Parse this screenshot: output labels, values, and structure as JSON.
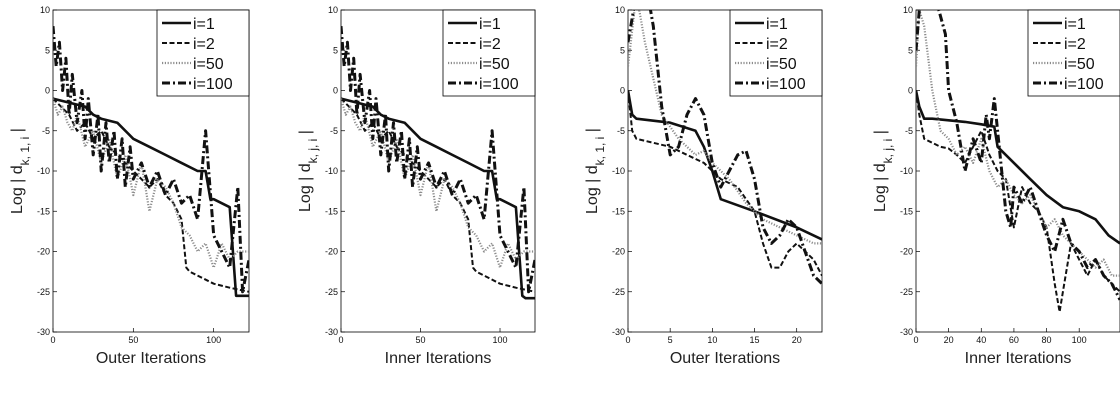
{
  "chart_data": [
    {
      "type": "line",
      "xlabel": "Outer Iterations",
      "ylabel": "Log | d",
      "ylabel_sub": "k, 1, i",
      "ylabel_end": " |",
      "xlim": [
        0,
        122
      ],
      "ylim": [
        -30,
        10
      ],
      "xticks": [
        0,
        50,
        100
      ],
      "yticks": [
        10,
        5,
        0,
        -5,
        -10,
        -15,
        -20,
        -25,
        -30
      ],
      "legend_position": "top-right",
      "series": [
        {
          "name": "i=1",
          "x": [
            0,
            10,
            20,
            25,
            30,
            40,
            50,
            60,
            70,
            80,
            90,
            95,
            98,
            100,
            110,
            114,
            116,
            122
          ],
          "y": [
            -1,
            -1.5,
            -2,
            -3,
            -3.5,
            -4,
            -6,
            -7,
            -8,
            -9,
            -10,
            -10,
            -13.5,
            -13.5,
            -14.5,
            -25.5,
            -25.5,
            -25.5
          ]
        },
        {
          "name": "i=2",
          "x": [
            0,
            5,
            10,
            15,
            20,
            25,
            30,
            35,
            40,
            45,
            50,
            55,
            60,
            65,
            70,
            75,
            80,
            83,
            85,
            90,
            100,
            110,
            122
          ],
          "y": [
            -1,
            -2,
            -3,
            -5,
            -4,
            -6,
            -5,
            -7,
            -8,
            -9,
            -10,
            -11,
            -12,
            -11,
            -13,
            -14,
            -16,
            -22,
            -22.5,
            -23,
            -24,
            -24.5,
            -25
          ]
        },
        {
          "name": "i=50",
          "x": [
            0,
            3,
            6,
            9,
            12,
            15,
            20,
            25,
            30,
            35,
            40,
            45,
            50,
            55,
            60,
            65,
            70,
            75,
            80,
            85,
            90,
            95,
            100,
            105,
            110,
            115,
            122
          ],
          "y": [
            -1,
            -3,
            -2,
            -4,
            -5,
            -3,
            -7,
            -5,
            -9,
            -6,
            -11,
            -8,
            -13,
            -9,
            -15,
            -11,
            -12,
            -14,
            -17,
            -18,
            -20,
            -19,
            -22,
            -19,
            -21,
            -20,
            -20
          ]
        },
        {
          "name": "i=100",
          "x": [
            0,
            2,
            4,
            6,
            8,
            10,
            12,
            15,
            18,
            20,
            22,
            25,
            28,
            30,
            33,
            35,
            38,
            40,
            43,
            45,
            48,
            50,
            55,
            60,
            65,
            70,
            75,
            80,
            85,
            90,
            95,
            100,
            105,
            110,
            115,
            118,
            122
          ],
          "y": [
            8,
            3,
            6,
            0,
            4,
            -3,
            2,
            -4,
            0,
            -6,
            -1,
            -8,
            -3,
            -10,
            -4,
            -9,
            -5,
            -11,
            -6,
            -12,
            -7,
            -11,
            -9,
            -12,
            -10,
            -13,
            -11,
            -14,
            -13,
            -16,
            -5,
            -18,
            -20,
            -22,
            -12,
            -25,
            -21
          ]
        }
      ]
    },
    {
      "type": "line",
      "xlabel": "Inner Iterations",
      "ylabel": "Log | d",
      "ylabel_sub": "k, j, i",
      "ylabel_end": " |",
      "xlim": [
        0,
        122
      ],
      "ylim": [
        -30,
        10
      ],
      "xticks": [
        0,
        50,
        100
      ],
      "yticks": [
        10,
        5,
        0,
        -5,
        -10,
        -15,
        -20,
        -25,
        -30
      ],
      "legend_position": "top-right",
      "series": [
        {
          "name": "i=1",
          "x": [
            0,
            10,
            20,
            25,
            30,
            40,
            50,
            60,
            70,
            80,
            90,
            95,
            98,
            100,
            110,
            114,
            116,
            122
          ],
          "y": [
            -1,
            -1.5,
            -2,
            -3,
            -3.5,
            -4,
            -6,
            -7,
            -8,
            -9,
            -10,
            -10,
            -13.5,
            -13.5,
            -14.5,
            -25.5,
            -25.8,
            -25.8
          ]
        },
        {
          "name": "i=2",
          "x": [
            0,
            5,
            10,
            15,
            20,
            25,
            30,
            35,
            40,
            45,
            50,
            55,
            60,
            65,
            70,
            75,
            80,
            83,
            85,
            90,
            100,
            110,
            122
          ],
          "y": [
            -1,
            -2,
            -3,
            -5,
            -4,
            -6,
            -5,
            -7,
            -8,
            -9,
            -10,
            -11,
            -12,
            -11,
            -13,
            -14,
            -16,
            -22,
            -22.5,
            -23,
            -24,
            -24.5,
            -25
          ]
        },
        {
          "name": "i=50",
          "x": [
            0,
            3,
            6,
            9,
            12,
            15,
            20,
            25,
            30,
            35,
            40,
            45,
            50,
            55,
            60,
            65,
            70,
            75,
            80,
            85,
            90,
            95,
            100,
            105,
            110,
            115,
            122
          ],
          "y": [
            -1,
            -3,
            -2,
            -4,
            -5,
            -3,
            -7,
            -5,
            -9,
            -6,
            -11,
            -8,
            -13,
            -9,
            -15,
            -11,
            -12,
            -14,
            -17,
            -18,
            -20,
            -19,
            -22,
            -19,
            -21,
            -20,
            -20
          ]
        },
        {
          "name": "i=100",
          "x": [
            0,
            2,
            4,
            6,
            8,
            10,
            12,
            15,
            18,
            20,
            22,
            25,
            28,
            30,
            33,
            35,
            38,
            40,
            43,
            45,
            48,
            50,
            55,
            60,
            65,
            70,
            75,
            80,
            85,
            90,
            95,
            100,
            105,
            110,
            115,
            118,
            122
          ],
          "y": [
            8,
            3,
            6,
            0,
            4,
            -3,
            2,
            -4,
            0,
            -6,
            -1,
            -8,
            -3,
            -10,
            -4,
            -9,
            -5,
            -11,
            -6,
            -12,
            -7,
            -11,
            -9,
            -12,
            -10,
            -13,
            -11,
            -14,
            -13,
            -16,
            -5,
            -18,
            -20,
            -22,
            -12,
            -25,
            -21
          ]
        }
      ]
    },
    {
      "type": "line",
      "xlabel": "Outer Iterations",
      "ylabel": "Log | d",
      "ylabel_sub": "k, 1, i",
      "ylabel_end": " |",
      "xlim": [
        0,
        23
      ],
      "ylim": [
        -30,
        10
      ],
      "xticks": [
        0,
        5,
        10,
        15,
        20
      ],
      "yticks": [
        10,
        5,
        0,
        -5,
        -10,
        -15,
        -20,
        -25,
        -30
      ],
      "legend_position": "top-right",
      "series": [
        {
          "name": "i=1",
          "x": [
            0,
            0.5,
            1,
            5,
            8,
            9,
            10,
            11,
            15,
            20,
            23
          ],
          "y": [
            0,
            -3,
            -3.5,
            -4,
            -5,
            -7,
            -10,
            -13.5,
            -15,
            -17,
            -18.5
          ]
        },
        {
          "name": "i=2",
          "x": [
            0,
            0.5,
            1,
            3,
            5,
            7,
            9,
            11,
            13,
            15,
            16,
            17,
            18,
            19,
            20,
            22,
            23
          ],
          "y": [
            0,
            -5,
            -6,
            -6.5,
            -7,
            -8,
            -9,
            -11,
            -12,
            -15,
            -19,
            -22,
            -22,
            -20,
            -19,
            -21,
            -23
          ]
        },
        {
          "name": "i=50",
          "x": [
            0,
            1,
            2,
            4,
            6,
            8,
            9,
            10,
            11,
            12,
            14,
            16,
            18,
            20,
            22,
            23
          ],
          "y": [
            3,
            12,
            6,
            -3,
            -6,
            -8,
            -7.5,
            -9,
            -10,
            -11,
            -14,
            -16,
            -17,
            -18,
            -19,
            -19
          ]
        },
        {
          "name": "i=100",
          "x": [
            0,
            1,
            2,
            3,
            4,
            5,
            6,
            7,
            8,
            9,
            10,
            11,
            12,
            13,
            14,
            15,
            16,
            17,
            18,
            19,
            20,
            21,
            22,
            23
          ],
          "y": [
            6,
            12,
            14,
            8,
            -2,
            -8,
            -7,
            -3,
            -1,
            -3,
            -9,
            -12,
            -10,
            -8,
            -7.5,
            -11,
            -17,
            -19,
            -18,
            -16,
            -17,
            -20,
            -23,
            -24
          ]
        }
      ]
    },
    {
      "type": "line",
      "xlabel": "Inner Iterations",
      "ylabel": "Log | d",
      "ylabel_sub": "k, j, i",
      "ylabel_end": " |",
      "xlim": [
        0,
        125
      ],
      "ylim": [
        -30,
        10
      ],
      "xticks": [
        0,
        20,
        40,
        60,
        80,
        100
      ],
      "yticks": [
        10,
        5,
        0,
        -5,
        -10,
        -15,
        -20,
        -25,
        -30
      ],
      "legend_position": "top-right",
      "series": [
        {
          "name": "i=1",
          "x": [
            0,
            2,
            5,
            10,
            20,
            30,
            40,
            48,
            50,
            60,
            70,
            80,
            90,
            100,
            110,
            118,
            125
          ],
          "y": [
            0,
            -2,
            -3.5,
            -3.5,
            -3.7,
            -3.9,
            -4.2,
            -4.5,
            -7,
            -9,
            -11,
            -13,
            -14.5,
            -15,
            -16,
            -18,
            -19
          ]
        },
        {
          "name": "i=2",
          "x": [
            0,
            2,
            5,
            10,
            15,
            20,
            25,
            30,
            35,
            40,
            45,
            50,
            55,
            60,
            65,
            70,
            75,
            80,
            85,
            88,
            90,
            95,
            100,
            105,
            110,
            115,
            120,
            125
          ],
          "y": [
            0,
            -3,
            -6,
            -6.5,
            -7,
            -7.2,
            -8,
            -9,
            -7,
            -5,
            -8,
            -10,
            -11,
            -17,
            -12,
            -14,
            -15,
            -17,
            -24,
            -27.5,
            -25,
            -19,
            -21,
            -23,
            -21,
            -23,
            -24,
            -25
          ]
        },
        {
          "name": "i=50",
          "x": [
            0,
            2,
            5,
            10,
            15,
            20,
            25,
            30,
            35,
            40,
            45,
            50,
            55,
            60,
            65,
            70,
            75,
            80,
            85,
            90,
            95,
            100,
            105,
            110,
            115,
            120,
            125
          ],
          "y": [
            3,
            10,
            8,
            0,
            -5,
            -6,
            -8,
            -7,
            -9,
            -6,
            -10,
            -12,
            -11,
            -13,
            -14,
            -13,
            -15,
            -17,
            -16,
            -18,
            -19,
            -20,
            -21,
            -22,
            -21,
            -23,
            -23
          ]
        },
        {
          "name": "i=100",
          "x": [
            0,
            2,
            4,
            6,
            8,
            10,
            14,
            18,
            20,
            25,
            30,
            35,
            40,
            43,
            45,
            48,
            50,
            55,
            58,
            60,
            65,
            70,
            75,
            80,
            85,
            90,
            95,
            100,
            105,
            110,
            115,
            120,
            125
          ],
          "y": [
            5,
            10,
            12,
            11,
            10,
            12,
            10,
            7,
            0,
            -4,
            -10,
            -6,
            -9,
            -3,
            -6,
            -1,
            -5,
            -15,
            -17,
            -12,
            -14,
            -12,
            -15,
            -18,
            -20,
            -16,
            -19,
            -20,
            -22,
            -21,
            -23,
            -24,
            -26
          ]
        }
      ]
    }
  ]
}
